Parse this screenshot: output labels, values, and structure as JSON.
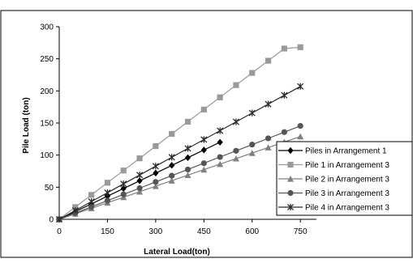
{
  "header_text": "",
  "chart_data": {
    "type": "line",
    "title": "",
    "xlabel": "Lateral Load(ton)",
    "ylabel": "Pile Load (ton)",
    "xlim": [
      0,
      800
    ],
    "ylim": [
      0,
      300
    ],
    "xticks": [
      0,
      150,
      300,
      450,
      600,
      750
    ],
    "yticks": [
      0,
      50,
      100,
      150,
      200,
      250,
      300
    ],
    "grid": false,
    "legend_position": "right",
    "series": [
      {
        "name": "Piles in Arrangement 1",
        "marker": "diamond",
        "color": "#000000",
        "x": [
          0,
          50,
          100,
          150,
          200,
          250,
          300,
          350,
          400,
          450,
          500
        ],
        "y": [
          0,
          12,
          24,
          36,
          48,
          60,
          72,
          84,
          96,
          108,
          120
        ]
      },
      {
        "name": "Pile 1 in Arrangement 3",
        "marker": "square",
        "color": "#999999",
        "x": [
          0,
          50,
          100,
          150,
          200,
          250,
          300,
          350,
          400,
          450,
          500,
          550,
          600,
          650,
          700,
          750
        ],
        "y": [
          0,
          19,
          38,
          57,
          76,
          95,
          114,
          133,
          152,
          171,
          190,
          209,
          228,
          247,
          266,
          268
        ]
      },
      {
        "name": "Pile 2 in Arrangement 3",
        "marker": "triangle",
        "color": "#808080",
        "x": [
          0,
          50,
          100,
          150,
          200,
          250,
          300,
          350,
          400,
          450,
          500,
          550,
          600,
          650,
          700,
          750
        ],
        "y": [
          0,
          8.6,
          17.2,
          25.8,
          34.4,
          43,
          51.6,
          60.2,
          68.8,
          77.4,
          86,
          94.6,
          103.2,
          111.8,
          120.4,
          129
        ]
      },
      {
        "name": "Pile 3 in Arrangement 3",
        "marker": "circle",
        "color": "#555555",
        "x": [
          0,
          50,
          100,
          150,
          200,
          250,
          300,
          350,
          400,
          450,
          500,
          550,
          600,
          650,
          700,
          750
        ],
        "y": [
          0,
          9.7,
          19.4,
          29.1,
          38.8,
          48.5,
          58.2,
          67.9,
          77.6,
          87.3,
          97,
          106.7,
          116.4,
          126.1,
          135.8,
          145.5
        ]
      },
      {
        "name": "Pile 4 in Arrangement 3",
        "marker": "star",
        "color": "#2b2b2b",
        "x": [
          0,
          50,
          100,
          150,
          200,
          250,
          300,
          350,
          400,
          450,
          500,
          550,
          600,
          650,
          700,
          750
        ],
        "y": [
          0,
          13.8,
          27.6,
          41.4,
          55.2,
          69,
          82.8,
          96.6,
          110.4,
          124.2,
          138,
          151.8,
          165.6,
          179.4,
          193.2,
          207
        ]
      }
    ]
  }
}
